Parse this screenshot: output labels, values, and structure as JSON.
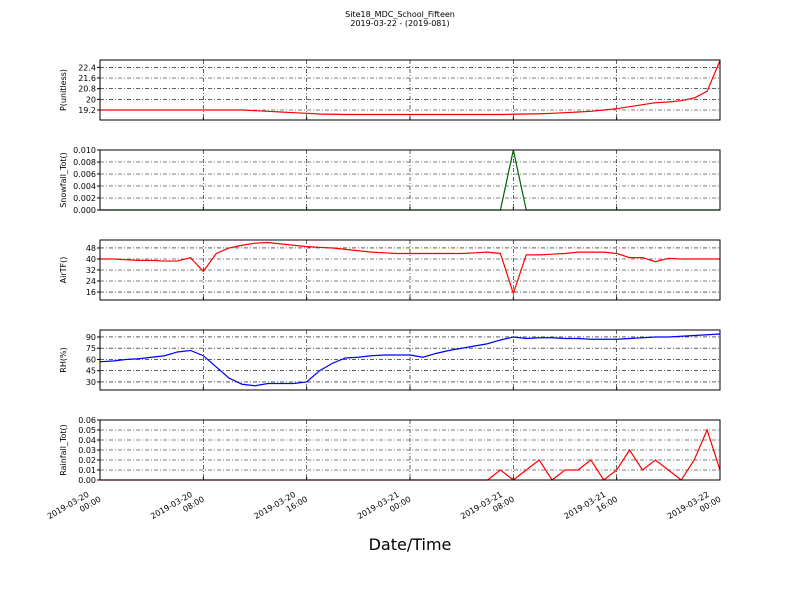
{
  "title": "Site18_MDC_School_Fifteen",
  "subtitle": "2019-03-22 - (2019-081)",
  "xlabel": "Date/Time",
  "x": [
    "2019-03-20 00:00",
    "2019-03-20 01:00",
    "2019-03-20 02:00",
    "2019-03-20 03:00",
    "2019-03-20 04:00",
    "2019-03-20 05:00",
    "2019-03-20 06:00",
    "2019-03-20 07:00",
    "2019-03-20 08:00",
    "2019-03-20 09:00",
    "2019-03-20 10:00",
    "2019-03-20 11:00",
    "2019-03-20 12:00",
    "2019-03-20 13:00",
    "2019-03-20 14:00",
    "2019-03-20 15:00",
    "2019-03-20 16:00",
    "2019-03-20 17:00",
    "2019-03-20 18:00",
    "2019-03-20 19:00",
    "2019-03-20 20:00",
    "2019-03-20 21:00",
    "2019-03-20 22:00",
    "2019-03-20 23:00",
    "2019-03-21 00:00",
    "2019-03-21 01:00",
    "2019-03-21 02:00",
    "2019-03-21 03:00",
    "2019-03-21 04:00",
    "2019-03-21 05:00",
    "2019-03-21 06:00",
    "2019-03-21 07:00",
    "2019-03-21 08:00",
    "2019-03-21 09:00",
    "2019-03-21 10:00",
    "2019-03-21 11:00",
    "2019-03-21 12:00",
    "2019-03-21 13:00",
    "2019-03-21 14:00",
    "2019-03-21 15:00",
    "2019-03-21 16:00",
    "2019-03-21 17:00",
    "2019-03-21 18:00",
    "2019-03-21 19:00",
    "2019-03-21 20:00",
    "2019-03-21 21:00",
    "2019-03-21 22:00",
    "2019-03-21 23:00",
    "2019-03-22 00:00"
  ],
  "xlim": [
    "2019-03-20 00:00",
    "2019-03-22 00:00"
  ],
  "xticks": [
    "2019-03-20 00:00",
    "2019-03-20 08:00",
    "2019-03-20 16:00",
    "2019-03-21 00:00",
    "2019-03-21 08:00",
    "2019-03-21 16:00",
    "2019-03-22 00:00"
  ],
  "chart_data": [
    {
      "type": "line",
      "ylabel": "P(unitless)",
      "color": "#ff0000",
      "grid": true,
      "ylim": [
        18.45,
        22.95
      ],
      "yticks": [
        19.2,
        20.0,
        20.8,
        21.6,
        22.4
      ],
      "values": [
        19.2,
        19.2,
        19.2,
        19.2,
        19.2,
        19.2,
        19.2,
        19.2,
        19.2,
        19.2,
        19.2,
        19.2,
        19.15,
        19.1,
        19.05,
        19.0,
        18.95,
        18.9,
        18.88,
        18.86,
        18.86,
        18.86,
        18.86,
        18.86,
        18.86,
        18.86,
        18.86,
        18.86,
        18.86,
        18.86,
        18.86,
        18.86,
        18.88,
        18.9,
        18.92,
        18.95,
        19.0,
        19.05,
        19.1,
        19.2,
        19.3,
        19.45,
        19.6,
        19.75,
        19.8,
        19.9,
        20.1,
        20.6,
        22.9
      ]
    },
    {
      "type": "line",
      "ylabel": "Snowfall_Tot()",
      "color": "#006400",
      "grid": true,
      "ylim": [
        0,
        0.01
      ],
      "yticks": [
        {
          "value": 0,
          "label": "0.000"
        },
        {
          "value": 0.002,
          "label": "0.002"
        },
        {
          "value": 0.004,
          "label": "0.004"
        },
        {
          "value": 0.006,
          "label": "0.006"
        },
        {
          "value": 0.008,
          "label": "0.008"
        },
        {
          "value": 0.01,
          "label": "0.010"
        }
      ],
      "values": [
        0,
        0,
        0,
        0,
        0,
        0,
        0,
        0,
        0,
        0,
        0,
        0,
        0,
        0,
        0,
        0,
        0,
        0,
        0,
        0,
        0,
        0,
        0,
        0,
        0,
        0,
        0,
        0,
        0,
        0,
        0,
        0,
        0.01,
        0,
        0,
        0,
        0,
        0,
        0,
        0,
        0,
        0,
        0,
        0,
        0,
        0,
        0,
        0,
        0
      ]
    },
    {
      "type": "line",
      "ylabel": "AirTF()",
      "color": "#ff0000",
      "grid": true,
      "ylim": [
        10.2,
        53.8
      ],
      "yticks": [
        16,
        24,
        32,
        40,
        48
      ],
      "values": [
        40,
        40,
        39.5,
        39,
        39,
        38.5,
        38.5,
        41,
        31,
        44,
        48,
        50,
        51.5,
        52,
        51,
        50,
        49,
        48.5,
        48,
        47,
        46,
        45,
        44.5,
        44,
        44,
        44,
        44,
        44,
        44,
        44.5,
        45,
        44,
        15,
        43,
        43,
        43.5,
        44,
        45,
        45,
        45,
        44,
        41,
        41,
        38,
        40.5,
        40,
        40,
        40,
        40
      ]
    },
    {
      "type": "line",
      "ylabel": "RH(%)",
      "color": "#0000ff",
      "grid": true,
      "ylim": [
        19.3,
        99.3
      ],
      "yticks": [
        30,
        45,
        60,
        75,
        90
      ],
      "values": [
        57,
        58,
        60,
        61,
        63,
        65,
        70,
        72,
        65,
        50,
        35,
        27,
        25,
        28,
        28,
        28,
        30,
        45,
        55,
        62,
        63,
        65,
        66,
        66,
        66,
        63,
        68,
        72,
        75,
        78,
        81,
        86,
        90,
        88,
        89,
        89,
        88,
        88,
        87,
        87,
        87,
        88,
        89,
        90,
        90,
        91,
        92,
        93,
        94
      ]
    },
    {
      "type": "line",
      "ylabel": "Rainfall_Tot()",
      "color": "#ff0000",
      "grid": true,
      "ylim": [
        0,
        0.06
      ],
      "yticks": [
        {
          "value": 0,
          "label": "0.00"
        },
        {
          "value": 0.01,
          "label": "0.01"
        },
        {
          "value": 0.02,
          "label": "0.02"
        },
        {
          "value": 0.03,
          "label": "0.03"
        },
        {
          "value": 0.04,
          "label": "0.04"
        },
        {
          "value": 0.05,
          "label": "0.05"
        },
        {
          "value": 0.06,
          "label": "0.06"
        }
      ],
      "values": [
        0,
        0,
        0,
        0,
        0,
        0,
        0,
        0,
        0,
        0,
        0,
        0,
        0,
        0,
        0,
        0,
        0,
        0,
        0,
        0,
        0,
        0,
        0,
        0,
        0,
        0,
        0,
        0,
        0,
        0,
        0,
        0.01,
        0,
        0.01,
        0.02,
        0,
        0.01,
        0.01,
        0.02,
        0,
        0.01,
        0.03,
        0.01,
        0.02,
        0.01,
        0,
        0.02,
        0.05,
        0.01
      ]
    }
  ]
}
